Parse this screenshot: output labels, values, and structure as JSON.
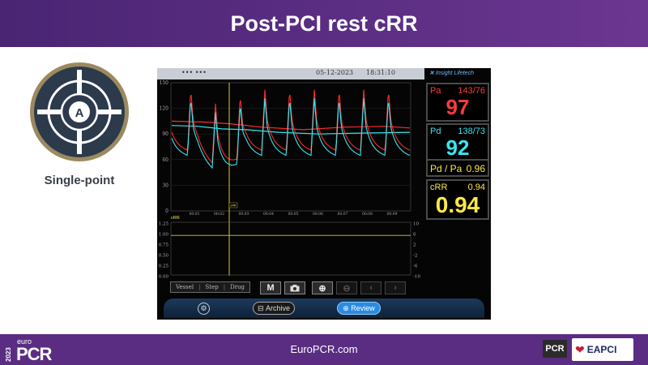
{
  "header": {
    "title": "Post-PCI rest cRR"
  },
  "left_panel": {
    "icon": "target-crosshair-icon",
    "icon_letter": "A",
    "label": "Single-point"
  },
  "device": {
    "top_label": "••• •••",
    "date": "05-12-2023",
    "time": "18:31:10",
    "brand": "Insight Lifetech",
    "graph": {
      "y_ticks": [
        "150",
        "120",
        "90",
        "60",
        "30",
        "0"
      ],
      "x_ticks": [
        "00:01",
        "00:02",
        "00:03",
        "00:04",
        "00:05",
        "00:06",
        "00:07",
        "00:08",
        "00:09"
      ],
      "marker_tag": "cRR",
      "lower_label": "cRR",
      "lower_left_ticks": [
        "1.25",
        "1.00",
        "0.75",
        "0.50",
        "0.25",
        "0.00"
      ],
      "lower_right_ticks": [
        "10",
        "6",
        "2",
        "-2",
        "-6",
        "-10"
      ]
    },
    "pa": {
      "label": "Pa",
      "sys_dia": "143/76",
      "mean": "97"
    },
    "pd": {
      "label": "Pd",
      "sys_dia": "138/73",
      "mean": "92"
    },
    "ratio": {
      "label": "Pd / Pa",
      "value": "0.96"
    },
    "crr": {
      "label": "cRR",
      "small": "0.94",
      "big": "0.94"
    },
    "toolbar": {
      "vessel": "Vessel",
      "step": "Step",
      "drug": "Drug",
      "m_label": "M",
      "camera": "camera-icon",
      "zoom_in": "zoom-in-icon",
      "zoom_out": "zoom-out-icon",
      "prev": "‹",
      "next": "›"
    },
    "bottom": {
      "archive": "Archive",
      "review": "Review",
      "settings": "gear-icon"
    }
  },
  "colors": {
    "purple": "#5a2d82",
    "pa": "#ff3b3b",
    "pd": "#38e6f0",
    "ratio": "#ffe74a"
  },
  "footer": {
    "year": "2023",
    "euro": "euro",
    "pcr": "PCR",
    "site": "EuroPCR.com",
    "pcr_badge": "PCR",
    "eapci": "EAPCI"
  }
}
